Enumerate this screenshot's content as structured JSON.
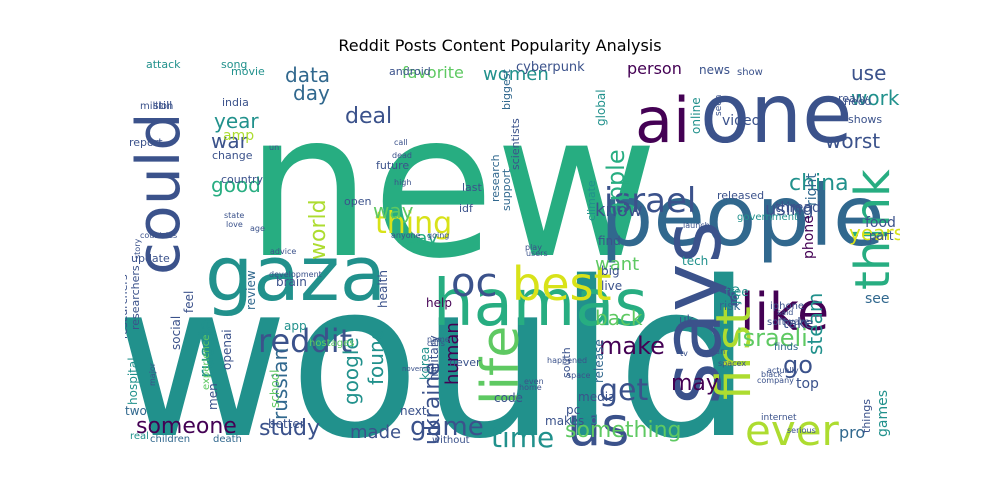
{
  "title": "Reddit Posts Content Popularity Analysis",
  "palette": {
    "dark_purple": "#440154",
    "indigo": "#3b528b",
    "blue": "#31688e",
    "teal": "#21918c",
    "green": "#27ad81",
    "light_green": "#5ec962",
    "lime": "#addc30",
    "yellow": "#d8e219"
  },
  "words": [
    "new",
    "would",
    "people",
    "one",
    "ai",
    "says",
    "gaza",
    "hamas",
    "could",
    "like",
    "us",
    "think",
    "first",
    "israel",
    "best",
    "oc",
    "ever",
    "life",
    "reddit",
    "get",
    "israeli",
    "time",
    "game",
    "thing",
    "make",
    "something",
    "someone",
    "study",
    "ukraine",
    "china",
    "apple",
    "world",
    "years",
    "go",
    "may",
    "russian",
    "russia",
    "use",
    "work",
    "data",
    "deal",
    "war",
    "good",
    "year",
    "day",
    "amp",
    "worst",
    "women",
    "favorite",
    "person",
    "cyberpunk",
    "steam",
    "know",
    "using",
    "back",
    "want",
    "found",
    "google",
    "human",
    "made",
    "way",
    "say",
    "pro",
    "games",
    "top",
    "take",
    "finds",
    "see",
    "food",
    "part",
    "right",
    "phone",
    "thread",
    "video",
    "global",
    "online",
    "news",
    "release",
    "media",
    "code",
    "pc",
    "used",
    "makes",
    "next",
    "better",
    "school",
    "men",
    "two",
    "hospital",
    "social",
    "feel",
    "app",
    "openai",
    "review",
    "brain",
    "help",
    "health",
    "korea",
    "military",
    "live",
    "find",
    "tech",
    "big",
    "risk",
    "free",
    "job",
    "uk",
    "iphone",
    "software",
    "hostages",
    "experience",
    "children",
    "death",
    "real",
    "without",
    "attack",
    "song",
    "movie",
    "android",
    "million",
    "still",
    "india",
    "report",
    "change",
    "country",
    "future",
    "idf",
    "last",
    "never",
    "open",
    "researchers",
    "update",
    "researchers",
    "south",
    "climate",
    "support",
    "research",
    "biggest",
    "scientists",
    "show",
    "need",
    "shows",
    "really",
    "seen",
    "released",
    "government",
    "launch",
    "black",
    "internet",
    "serious",
    "things",
    "said",
    "actually",
    "space",
    "happened",
    "even",
    "home",
    "november",
    "major",
    "love",
    "age",
    "advice",
    "development",
    "story",
    "countries",
    "state",
    "un",
    "call",
    "dead",
    "high",
    "anyone",
    "users",
    "play",
    "going",
    "calls",
    "name",
    "tv",
    "san",
    "spacex",
    "company"
  ]
}
